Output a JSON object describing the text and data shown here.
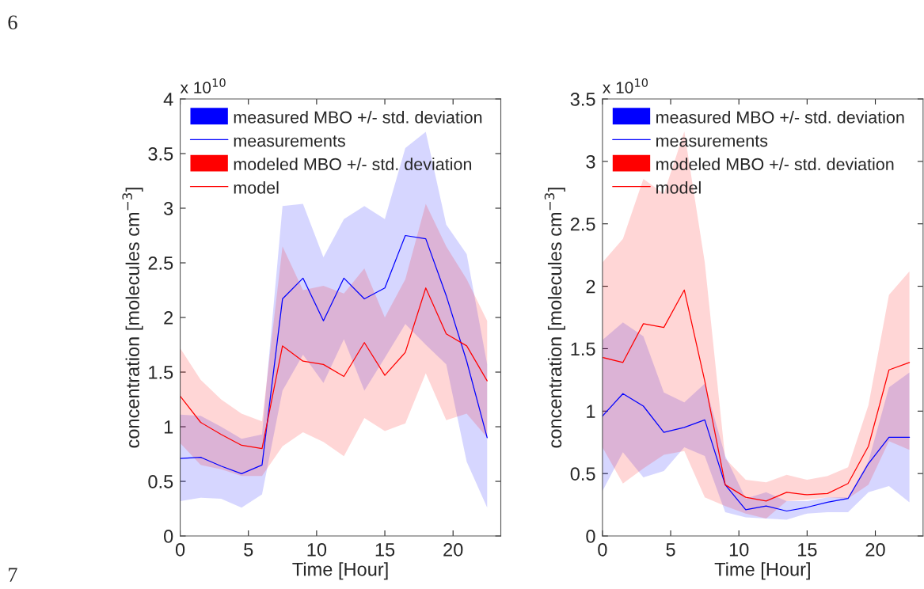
{
  "chart_data": [
    {
      "type": "line",
      "xlabel": "Time [Hour]",
      "ylabel": "concentration [molecules cm$^{−3}$]",
      "annotations": [
        "x 10$^{10}$",
        "measured MBO +/- std. deviation",
        "modeled MBO +/- std. deviation",
        "6",
        "7"
      ],
      "x": [
        0,
        1.5,
        3,
        4.5,
        6,
        7.5,
        9,
        10.5,
        12,
        13.5,
        15,
        16.5,
        18,
        19.5,
        21,
        22.5
      ],
      "xlim": [
        0,
        23.5
      ],
      "xticks": [
        0,
        5,
        10,
        15,
        20
      ],
      "ylim": [
        0,
        4
      ],
      "yticks": [
        0,
        0.5,
        1,
        1.5,
        2,
        2.5,
        3,
        3.5,
        4
      ],
      "legend": "top left",
      "grid": false,
      "series": [
        {
          "name": "measurements",
          "color": "#0000ff",
          "values": [
            0.71,
            0.72,
            0.64,
            0.57,
            0.65,
            2.17,
            2.36,
            1.97,
            2.36,
            2.17,
            2.27,
            2.75,
            2.72,
            2.2,
            1.6,
            0.9
          ],
          "lower": [
            0.32,
            0.35,
            0.34,
            0.26,
            0.38,
            1.33,
            1.66,
            1.4,
            1.8,
            1.33,
            1.63,
            1.94,
            1.75,
            1.57,
            0.68,
            0.26
          ],
          "upper": [
            1.11,
            1.1,
            1.0,
            0.89,
            0.93,
            3.02,
            3.04,
            2.55,
            2.9,
            3.02,
            2.9,
            3.55,
            3.7,
            2.85,
            2.58,
            1.57
          ]
        },
        {
          "name": "model",
          "color": "#ff0000",
          "values": [
            1.28,
            1.04,
            0.93,
            0.83,
            0.8,
            1.74,
            1.6,
            1.57,
            1.46,
            1.77,
            1.47,
            1.68,
            2.27,
            1.85,
            1.74,
            1.42
          ],
          "lower": [
            0.85,
            0.65,
            0.61,
            0.55,
            0.55,
            0.82,
            0.95,
            0.86,
            0.73,
            1.08,
            0.96,
            1.03,
            1.49,
            1.06,
            1.12,
            0.9
          ],
          "upper": [
            1.72,
            1.43,
            1.25,
            1.12,
            1.05,
            2.65,
            2.25,
            2.29,
            2.22,
            2.45,
            2.0,
            2.35,
            3.04,
            2.65,
            2.35,
            1.97
          ]
        }
      ]
    },
    {
      "type": "line",
      "xlabel": "Time [Hour]",
      "ylabel": "concentration [molecules cm$^{−3}$]",
      "annotations": [
        "x 10$^{10}$",
        "measured MBO +/- std. deviation",
        "modeled MBO +/- std. deviation"
      ],
      "x": [
        0,
        1.5,
        3,
        4.5,
        6,
        7.5,
        9,
        10.5,
        12,
        13.5,
        15,
        16.5,
        18,
        19.5,
        21,
        22.5
      ],
      "xlim": [
        0,
        23.5
      ],
      "xticks": [
        0,
        5,
        10,
        15,
        20
      ],
      "ylim": [
        0,
        3.5
      ],
      "yticks": [
        0,
        0.5,
        1,
        1.5,
        2,
        2.5,
        3,
        3.5
      ],
      "legend": "top left",
      "grid": false,
      "series": [
        {
          "name": "measurements",
          "color": "#0000ff",
          "values": [
            0.96,
            1.14,
            1.04,
            0.83,
            0.87,
            0.93,
            0.41,
            0.21,
            0.24,
            0.2,
            0.23,
            0.27,
            0.3,
            0.58,
            0.79,
            0.79
          ],
          "lower": [
            0.36,
            0.67,
            0.47,
            0.52,
            0.71,
            0.64,
            0.19,
            0.15,
            0.14,
            0.13,
            0.18,
            0.19,
            0.19,
            0.35,
            0.4,
            0.27
          ],
          "upper": [
            1.57,
            1.71,
            1.6,
            1.15,
            1.07,
            1.22,
            0.64,
            0.3,
            0.35,
            0.28,
            0.28,
            0.31,
            0.31,
            0.6,
            1.19,
            1.31
          ]
        },
        {
          "name": "model",
          "color": "#ff0000",
          "values": [
            1.43,
            1.39,
            1.7,
            1.67,
            1.97,
            1.24,
            0.41,
            0.31,
            0.28,
            0.35,
            0.33,
            0.34,
            0.42,
            0.72,
            1.33,
            1.39
          ],
          "lower": [
            0.71,
            0.42,
            0.54,
            0.65,
            0.68,
            0.31,
            0.24,
            0.18,
            0.14,
            0.28,
            0.29,
            0.31,
            0.3,
            0.41,
            0.76,
            0.69
          ],
          "upper": [
            2.19,
            2.38,
            2.86,
            2.74,
            3.24,
            2.19,
            0.62,
            0.45,
            0.43,
            0.49,
            0.45,
            0.48,
            0.55,
            1.05,
            1.93,
            2.12
          ]
        }
      ]
    }
  ]
}
